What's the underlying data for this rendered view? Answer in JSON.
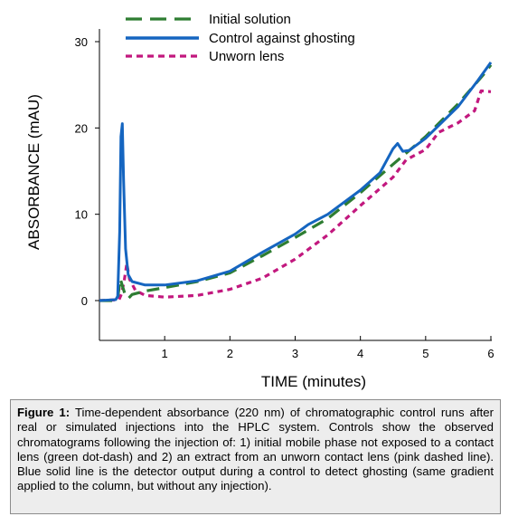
{
  "chart_data": {
    "type": "line",
    "xlabel": "TIME (minutes)",
    "ylabel": "ABSORBANCE (mAU)",
    "xlim": [
      0,
      6
    ],
    "ylim": [
      -5,
      30
    ],
    "xticks": [
      1,
      2,
      3,
      4,
      5,
      6
    ],
    "yticks": [
      0,
      10,
      20,
      30
    ],
    "grid": false,
    "legend_position": "top",
    "series": [
      {
        "name": "Initial solution",
        "color": "#2e7d32",
        "style": "long-dash",
        "points": [
          [
            0,
            0
          ],
          [
            0.2,
            0
          ],
          [
            0.28,
            0.3
          ],
          [
            0.32,
            2.5
          ],
          [
            0.36,
            1.5
          ],
          [
            0.4,
            0.5
          ],
          [
            0.45,
            0.3
          ],
          [
            0.5,
            0.7
          ],
          [
            0.7,
            1.1
          ],
          [
            1,
            1.5
          ],
          [
            1.5,
            2.2
          ],
          [
            2,
            3.2
          ],
          [
            2.5,
            5.2
          ],
          [
            3,
            7.3
          ],
          [
            3.5,
            9.5
          ],
          [
            4,
            12.5
          ],
          [
            4.5,
            15.8
          ],
          [
            5,
            19
          ],
          [
            5.5,
            22.8
          ],
          [
            5.9,
            26.3
          ],
          [
            6,
            27.3
          ]
        ]
      },
      {
        "name": "Control against ghosting",
        "color": "#1565c0",
        "style": "solid",
        "points": [
          [
            0,
            0
          ],
          [
            0.25,
            0.1
          ],
          [
            0.28,
            0.5
          ],
          [
            0.31,
            8
          ],
          [
            0.33,
            19
          ],
          [
            0.35,
            20.5
          ],
          [
            0.37,
            14
          ],
          [
            0.4,
            6
          ],
          [
            0.44,
            3
          ],
          [
            0.5,
            2.2
          ],
          [
            0.7,
            1.8
          ],
          [
            1,
            1.8
          ],
          [
            1.5,
            2.3
          ],
          [
            2,
            3.4
          ],
          [
            2.5,
            5.6
          ],
          [
            3,
            7.7
          ],
          [
            3.2,
            8.8
          ],
          [
            3.5,
            10
          ],
          [
            4,
            12.8
          ],
          [
            4.3,
            14.8
          ],
          [
            4.5,
            17.6
          ],
          [
            4.57,
            18.2
          ],
          [
            4.65,
            17.3
          ],
          [
            4.75,
            17.4
          ],
          [
            5,
            18.8
          ],
          [
            5.5,
            22.5
          ],
          [
            5.8,
            25.5
          ],
          [
            6,
            27.6
          ]
        ]
      },
      {
        "name": "Unworn lens",
        "color": "#c2187e",
        "style": "short-dash",
        "points": [
          [
            0,
            0
          ],
          [
            0.3,
            0.1
          ],
          [
            0.34,
            0.8
          ],
          [
            0.38,
            2.3
          ],
          [
            0.42,
            4.3
          ],
          [
            0.46,
            2.5
          ],
          [
            0.55,
            1.2
          ],
          [
            0.7,
            0.6
          ],
          [
            1,
            0.4
          ],
          [
            1.5,
            0.6
          ],
          [
            2,
            1.3
          ],
          [
            2.5,
            2.6
          ],
          [
            3,
            4.8
          ],
          [
            3.5,
            7.6
          ],
          [
            4,
            11
          ],
          [
            4.5,
            14.3
          ],
          [
            4.7,
            16.3
          ],
          [
            5,
            17.5
          ],
          [
            5.2,
            19.5
          ],
          [
            5.5,
            20.6
          ],
          [
            5.75,
            22
          ],
          [
            5.85,
            24.3
          ],
          [
            6,
            24.2
          ]
        ]
      }
    ]
  },
  "caption": {
    "label": "Figure 1:",
    "text": " Time-dependent absorbance (220 nm) of chromatographic control runs after real or simulated injections into the HPLC system. Controls show the observed chromatograms following the injection of: 1) initial mobile phase not exposed to a contact lens (green dot-dash) and 2) an extract from an unworn contact lens (pink dashed line). Blue solid line is the detector output during a control to detect ghosting (same gradient applied to the column, but without any injection)."
  }
}
